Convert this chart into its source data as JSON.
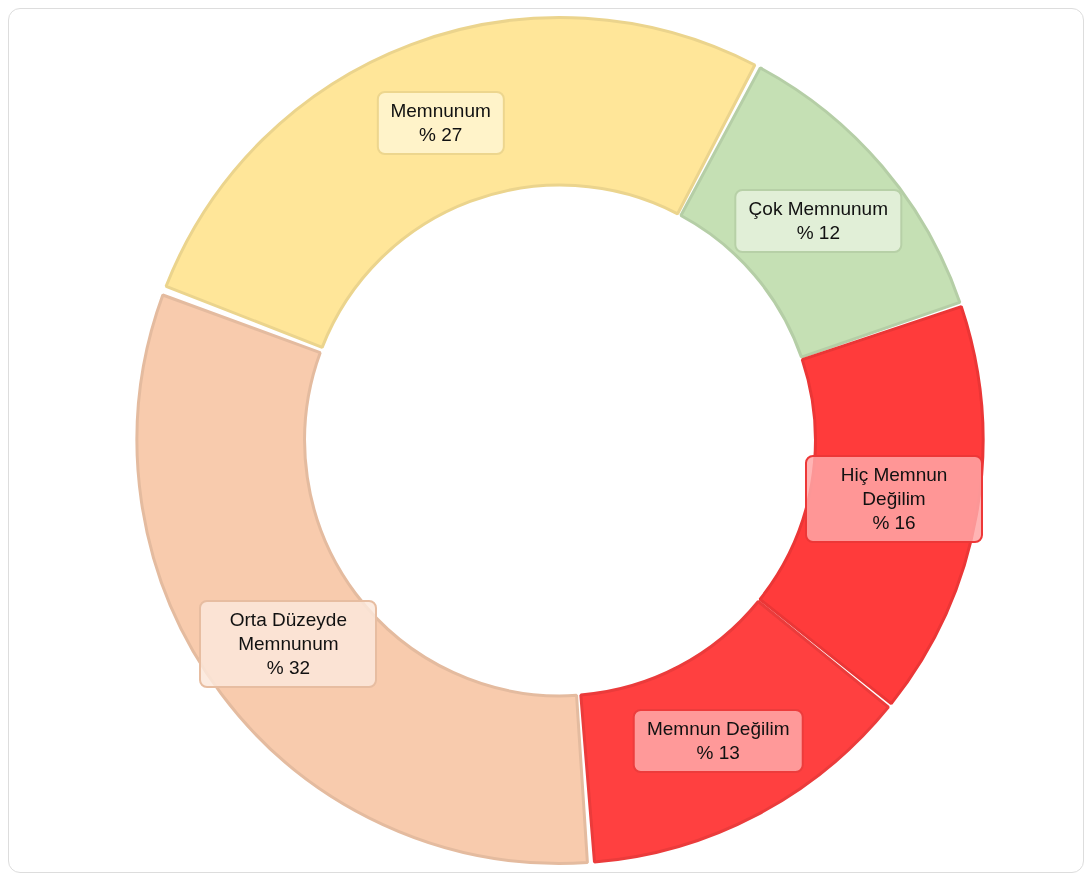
{
  "chart_data": {
    "type": "donut",
    "categories": [
      "Çok Memnunum",
      "Hiç Memnun Değilim",
      "Memnun Değilim",
      "Orta Düzeyde Memnunum",
      "Memnunum"
    ],
    "values": [
      12,
      16,
      13,
      32,
      27
    ],
    "colors": [
      "#c5e0b4",
      "#ff3b3b",
      "#ff4040",
      "#f8cbad",
      "#ffe699"
    ],
    "value_labels": [
      "% 12",
      "% 16",
      "% 13",
      "% 32",
      "% 27"
    ]
  }
}
